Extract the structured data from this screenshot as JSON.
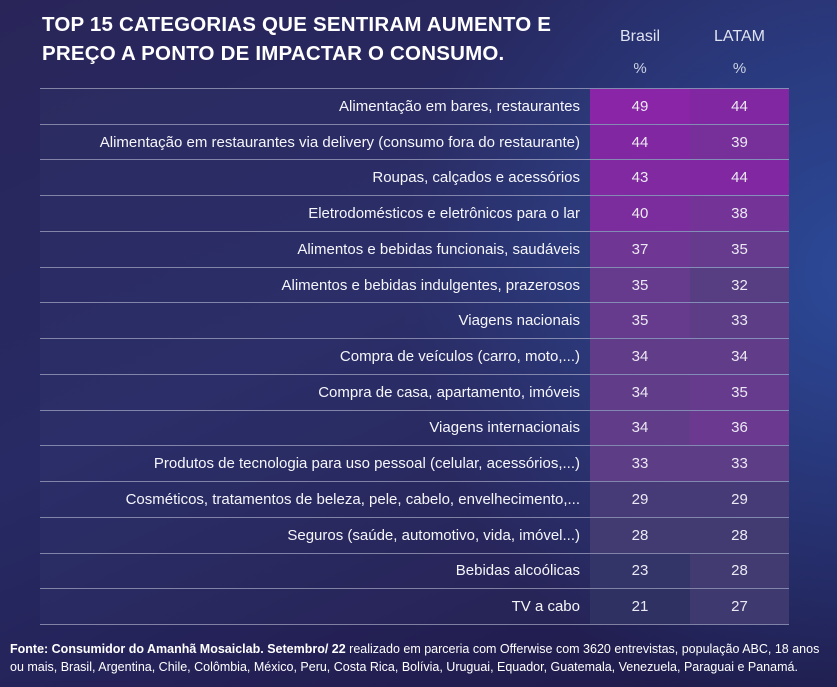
{
  "header": {
    "title": "TOP 15 CATEGORIAS QUE SENTIRAM AUMENTO E PREÇO A PONTO DE IMPACTAR O CONSUMO.",
    "columns": [
      {
        "label": "Brasil",
        "unit": "%"
      },
      {
        "label": "LATAM",
        "unit": "%"
      }
    ]
  },
  "chart_data": {
    "type": "heatmap",
    "title": "TOP 15 CATEGORIAS QUE SENTIRAM AUMENTO E PREÇO A PONTO DE IMPACTAR O CONSUMO.",
    "columns": [
      "Brasil %",
      "LATAM %"
    ],
    "value_unit": "%",
    "categories": [
      "Alimentação em bares, restaurantes",
      "Alimentação em restaurantes via delivery (consumo fora do restaurante)",
      "Roupas, calçados e acessórios",
      "Eletrodomésticos e eletrônicos para o lar",
      "Alimentos e bebidas funcionais, saudáveis",
      "Alimentos e bebidas indulgentes, prazerosos",
      "Viagens nacionais",
      "Compra de veículos (carro, moto,...)",
      "Compra de casa, apartamento, imóveis",
      "Viagens internacionais",
      "Produtos de tecnologia para uso pessoal (celular, acessórios,...)",
      "Cosméticos, tratamentos de beleza, pele, cabelo, envelhecimento,...",
      "Seguros (saúde, automotivo, vida, imóvel...)",
      "Bebidas alcoólicas",
      "TV a cabo"
    ],
    "series": [
      {
        "name": "Brasil",
        "values": [
          49,
          44,
          43,
          40,
          37,
          35,
          35,
          34,
          34,
          34,
          33,
          29,
          28,
          23,
          21
        ]
      },
      {
        "name": "LATAM",
        "values": [
          44,
          39,
          44,
          38,
          35,
          32,
          33,
          34,
          35,
          36,
          33,
          29,
          28,
          28,
          27
        ]
      }
    ],
    "heatmap_scale": {
      "min": 21,
      "max": 49,
      "low_color": "#2e3162",
      "high_color": "#8a25a8",
      "anchors": [
        [
          21,
          "#2e3162"
        ],
        [
          28,
          "#413b72"
        ],
        [
          33,
          "#5c3d86"
        ],
        [
          36,
          "#6b3990"
        ],
        [
          40,
          "#7b2d9d"
        ],
        [
          44,
          "#8227a2"
        ],
        [
          49,
          "#8a25a8"
        ]
      ]
    }
  },
  "footer": {
    "source_bold": "Fonte: Consumidor do Amanhã Mosaiclab. Setembro/ 22",
    "source_regular": " realizado em parceria com Offerwise com 3620 entrevistas, população ABC, 18 anos ou mais, Brasil, Argentina, Chile, Colômbia, México, Peru, Costa Rica, Bolívia, Uruguai, Equador, Guatemala, Venezuela, Paraguai e Panamá."
  }
}
